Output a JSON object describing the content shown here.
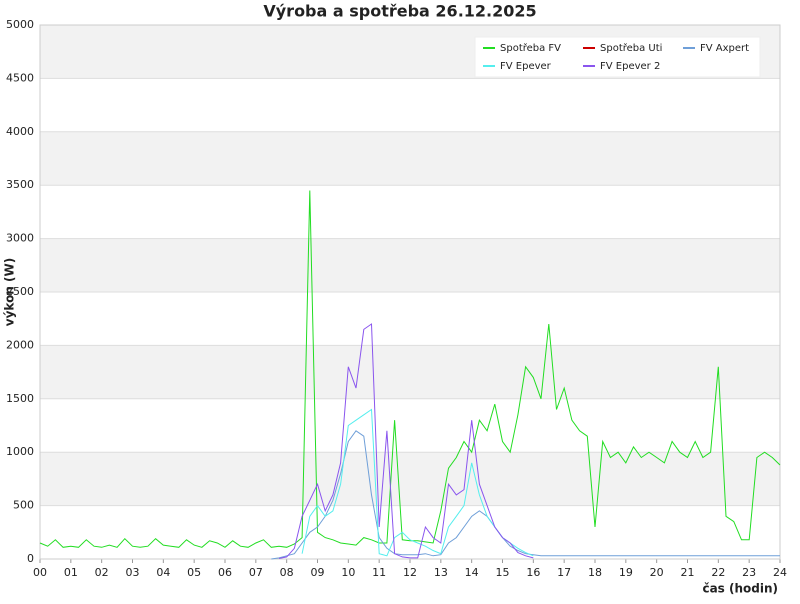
{
  "chart_data": {
    "type": "line",
    "title": "Výroba a spotřeba 26.12.2025",
    "y_label": "výkon (W)",
    "x_label": "čas (hodin)",
    "xlim": [
      0,
      24
    ],
    "ylim": [
      0,
      5000
    ],
    "xticks": [
      {
        "value": 0,
        "label": "00"
      },
      {
        "value": 1,
        "label": "01"
      },
      {
        "value": 2,
        "label": "02"
      },
      {
        "value": 3,
        "label": "03"
      },
      {
        "value": 4,
        "label": "04"
      },
      {
        "value": 5,
        "label": "05"
      },
      {
        "value": 6,
        "label": "06"
      },
      {
        "value": 7,
        "label": "07"
      },
      {
        "value": 8,
        "label": "08"
      },
      {
        "value": 9,
        "label": "09"
      },
      10,
      11,
      12,
      13,
      14,
      15,
      16,
      17,
      18,
      19,
      20,
      21,
      22,
      23,
      24
    ],
    "yticks": [
      0,
      500,
      1000,
      1500,
      2000,
      2500,
      3000,
      3500,
      4000,
      4500,
      5000
    ],
    "grid": true,
    "legend": "upper right",
    "x": [
      0,
      0.25,
      0.5,
      0.75,
      1,
      1.25,
      1.5,
      1.75,
      2,
      2.25,
      2.5,
      2.75,
      3,
      3.25,
      3.5,
      3.75,
      4,
      4.25,
      4.5,
      4.75,
      5,
      5.25,
      5.5,
      5.75,
      6,
      6.25,
      6.5,
      6.75,
      7,
      7.25,
      7.5,
      7.75,
      8,
      8.25,
      8.5,
      8.75,
      9,
      9.25,
      9.5,
      9.75,
      10,
      10.25,
      10.5,
      10.75,
      11,
      11.25,
      11.5,
      11.75,
      12,
      12.25,
      12.5,
      12.75,
      13,
      13.25,
      13.5,
      13.75,
      14,
      14.25,
      14.5,
      14.75,
      15,
      15.25,
      15.5,
      15.75,
      16,
      16.25,
      16.5,
      16.75,
      17,
      17.25,
      17.5,
      17.75,
      18,
      18.25,
      18.5,
      18.75,
      19,
      19.25,
      19.5,
      19.75,
      20,
      20.25,
      20.5,
      20.75,
      21,
      21.25,
      21.5,
      21.75,
      22,
      22.25,
      22.5,
      22.75,
      23,
      23.25,
      23.5,
      23.75,
      24
    ],
    "series": [
      {
        "name": "Spotřeba FV",
        "color": "#22dd22",
        "values": [
          150,
          120,
          180,
          110,
          120,
          110,
          180,
          120,
          110,
          130,
          110,
          190,
          120,
          110,
          120,
          190,
          130,
          120,
          110,
          180,
          130,
          110,
          170,
          150,
          110,
          170,
          120,
          110,
          150,
          180,
          110,
          120,
          110,
          140,
          200,
          3450,
          250,
          200,
          180,
          150,
          140,
          130,
          200,
          180,
          150,
          150,
          1300,
          180,
          170,
          170,
          160,
          150,
          450,
          850,
          950,
          1100,
          1000,
          1300,
          1200,
          1450,
          1100,
          1000,
          1350,
          1800,
          1700,
          1500,
          2200,
          1400,
          1600,
          1300,
          1200,
          1150,
          300,
          1100,
          950,
          1000,
          900,
          1050,
          950,
          1000,
          950,
          900,
          1100,
          1000,
          950,
          1100,
          950,
          1000,
          1800,
          400,
          350,
          180,
          180,
          950,
          1000,
          950,
          880
        ]
      },
      {
        "name": "Spotřeba Uti",
        "color": "#cc0000",
        "values": [
          null,
          null,
          null,
          null,
          null,
          null,
          null,
          null,
          null,
          null,
          null,
          null,
          null,
          null,
          null,
          null,
          null,
          null,
          null,
          null,
          null,
          null,
          null,
          null,
          null,
          null,
          null,
          null,
          null,
          null,
          null,
          null,
          null,
          null,
          null,
          null,
          null,
          null,
          null,
          null,
          null,
          null,
          null,
          null,
          null,
          null,
          null,
          null,
          null,
          null,
          null,
          null,
          null,
          null,
          null,
          null,
          null,
          null,
          null,
          null,
          null,
          null,
          null,
          null,
          null,
          null,
          null,
          null,
          null,
          null,
          null,
          null,
          null,
          null,
          null,
          null,
          null,
          null,
          null,
          null,
          null,
          null,
          null,
          null,
          null,
          null,
          null,
          null,
          null,
          null,
          null,
          null,
          null,
          null,
          null,
          null,
          null
        ]
      },
      {
        "name": "FV Axpert",
        "color": "#6f9fd8",
        "values": [
          null,
          null,
          null,
          null,
          null,
          null,
          null,
          null,
          null,
          null,
          null,
          null,
          null,
          null,
          null,
          null,
          null,
          null,
          null,
          null,
          null,
          null,
          null,
          null,
          null,
          null,
          null,
          null,
          null,
          null,
          0,
          10,
          30,
          50,
          150,
          250,
          300,
          400,
          550,
          800,
          1100,
          1200,
          1150,
          600,
          200,
          100,
          50,
          40,
          40,
          40,
          50,
          30,
          40,
          150,
          200,
          300,
          400,
          450,
          400,
          300,
          200,
          120,
          80,
          50,
          40,
          30,
          30,
          30,
          30,
          30,
          30,
          30,
          30,
          30,
          30,
          30,
          30,
          30,
          30,
          30,
          30,
          30,
          30,
          30,
          30,
          30,
          30,
          30,
          30,
          30,
          30,
          30,
          30,
          30,
          30,
          30,
          30
        ]
      },
      {
        "name": "FV Epever",
        "color": "#55eeee",
        "values": [
          null,
          null,
          null,
          null,
          null,
          null,
          null,
          null,
          null,
          null,
          null,
          null,
          null,
          null,
          null,
          null,
          null,
          null,
          null,
          null,
          null,
          null,
          null,
          null,
          null,
          null,
          null,
          null,
          null,
          null,
          null,
          null,
          null,
          null,
          50,
          400,
          500,
          400,
          450,
          700,
          1250,
          1300,
          1350,
          1400,
          50,
          30,
          200,
          250,
          180,
          150,
          120,
          80,
          50,
          300,
          400,
          500,
          900,
          600,
          400,
          300,
          200,
          150,
          100,
          60,
          30,
          null,
          null,
          null,
          null,
          null,
          null,
          null,
          null,
          null,
          null,
          null,
          null,
          null,
          null,
          null,
          null,
          null,
          null,
          null,
          null,
          null,
          null,
          null,
          null,
          null,
          null,
          null,
          null,
          null,
          null,
          null,
          null
        ]
      },
      {
        "name": "FV Epever 2",
        "color": "#8a55ee",
        "values": [
          null,
          null,
          null,
          null,
          null,
          null,
          null,
          null,
          null,
          null,
          null,
          null,
          null,
          null,
          null,
          null,
          null,
          null,
          null,
          null,
          null,
          null,
          null,
          null,
          null,
          null,
          null,
          null,
          null,
          null,
          null,
          5,
          20,
          100,
          400,
          550,
          700,
          450,
          600,
          900,
          1800,
          1600,
          2150,
          2200,
          300,
          1200,
          50,
          20,
          10,
          10,
          300,
          200,
          150,
          700,
          600,
          650,
          1300,
          700,
          500,
          300,
          200,
          150,
          60,
          30,
          10,
          null,
          null,
          null,
          null,
          null,
          null,
          null,
          null,
          null,
          null,
          null,
          null,
          null,
          null,
          null,
          null,
          null,
          null,
          null,
          null,
          null,
          null,
          null,
          null,
          null,
          null,
          null,
          null,
          null,
          null,
          null,
          null
        ]
      }
    ]
  }
}
